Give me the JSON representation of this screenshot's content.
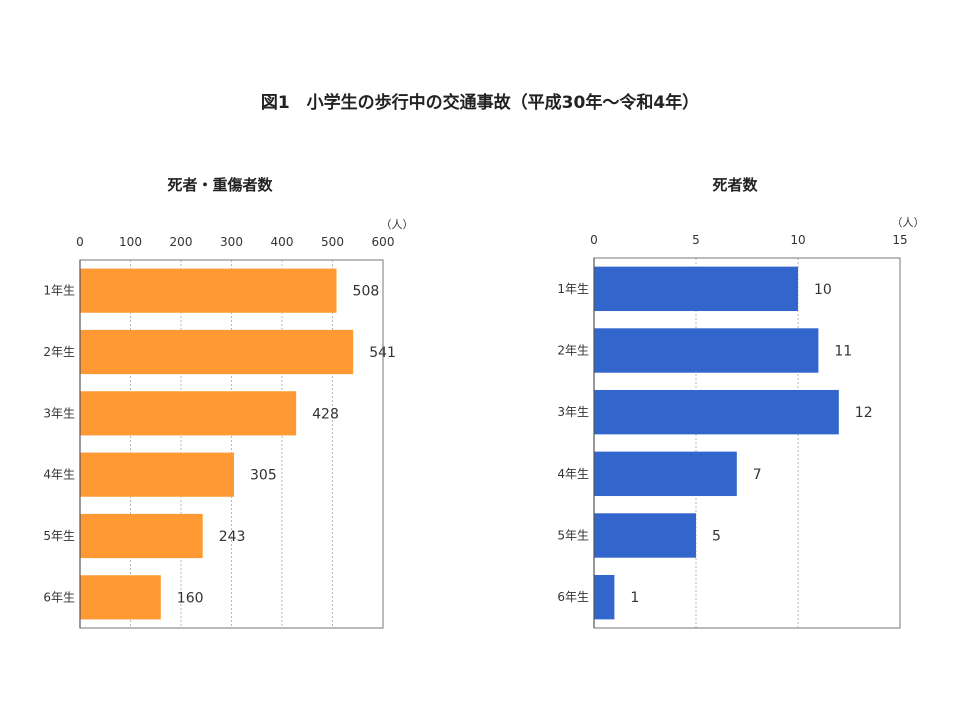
{
  "page_title": "図1　小学生の歩行中の交通事故（平成30年～令和4年）",
  "chart_data": [
    {
      "type": "bar",
      "orientation": "horizontal",
      "title": "死者・重傷者数",
      "unit": "（人）",
      "categories": [
        "1年生",
        "2年生",
        "3年生",
        "4年生",
        "5年生",
        "6年生"
      ],
      "values": [
        508,
        541,
        428,
        305,
        243,
        160
      ],
      "xlim": [
        0,
        600
      ],
      "ticks": [
        0,
        100,
        200,
        300,
        400,
        500,
        600
      ],
      "grid": "dotted vertical",
      "color": "#FF9933"
    },
    {
      "type": "bar",
      "orientation": "horizontal",
      "title": "死者数",
      "unit": "（人）",
      "categories": [
        "1年生",
        "2年生",
        "3年生",
        "4年生",
        "5年生",
        "6年生"
      ],
      "values": [
        10,
        11,
        12,
        7,
        5,
        1
      ],
      "xlim": [
        0,
        15
      ],
      "ticks": [
        0,
        5,
        10,
        15
      ],
      "grid": "dotted vertical",
      "color": "#3366CC"
    }
  ]
}
